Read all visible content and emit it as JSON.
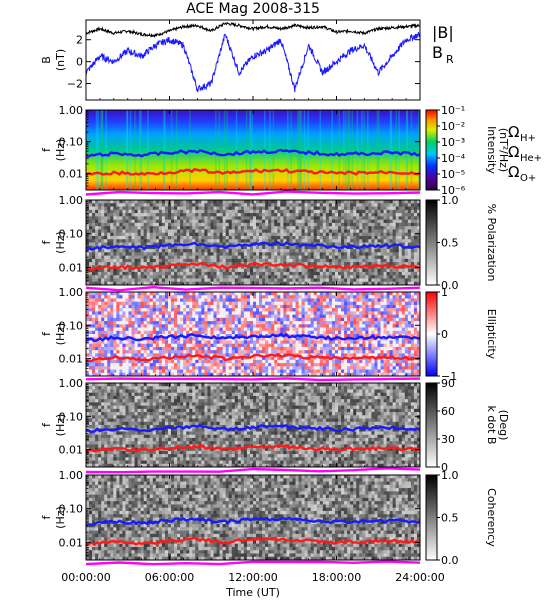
{
  "chart_data": {
    "title": "ACE Mag 2008-315",
    "xlabel": "Time (UT)",
    "x_ticks": [
      "00:00:00",
      "06:00:00",
      "12:00:00",
      "18:00:00",
      "24:00:00"
    ],
    "x_range_hours": [
      0,
      24
    ],
    "panels": [
      {
        "id": "B",
        "type": "line",
        "ylabel": "B",
        "yunit": "(nT)",
        "ylim": [
          -3.5,
          3.8
        ],
        "yticks": [
          {
            "v": 2,
            "label": "2"
          },
          {
            "v": 0,
            "label": "0"
          },
          {
            "v": -2,
            "label": "−2"
          }
        ],
        "legend": [
          {
            "name": "|B|",
            "sub": "",
            "color": "#000000"
          },
          {
            "name": "B",
            "sub": "R",
            "color": "#1a1aff"
          }
        ],
        "series": [
          {
            "name": "|B|",
            "color": "#000000",
            "x": [
              0,
              1,
              2,
              3,
              4,
              5,
              6,
              7,
              8,
              9,
              10,
              11,
              12,
              13,
              14,
              15,
              16,
              17,
              18,
              19,
              20,
              21,
              22,
              23,
              24
            ],
            "y": [
              2.6,
              3.0,
              2.6,
              2.8,
              2.5,
              2.4,
              2.8,
              3.2,
              3.3,
              2.8,
              3.5,
              3.3,
              3.0,
              3.2,
              3.0,
              3.3,
              3.1,
              3.2,
              2.7,
              2.8,
              2.6,
              3.0,
              3.1,
              3.2,
              3.3
            ]
          },
          {
            "name": "B_R",
            "color": "#1a1aff",
            "x": [
              0,
              1,
              2,
              3,
              4,
              5,
              6,
              7,
              8,
              9,
              10,
              11,
              12,
              13,
              14,
              15,
              16,
              17,
              18,
              19,
              20,
              21,
              22,
              23,
              24
            ],
            "y": [
              -1.0,
              0.5,
              0.0,
              1.0,
              0.5,
              1.5,
              2.0,
              1.5,
              -2.5,
              -2.0,
              2.5,
              -1.0,
              0.5,
              1.0,
              2.0,
              -2.5,
              1.5,
              -1.0,
              0.0,
              1.0,
              1.5,
              -1.0,
              0.5,
              2.0,
              2.5
            ]
          }
        ]
      },
      {
        "id": "intensity",
        "type": "heatmap",
        "ylabel": "f",
        "yunit": "(Hz)",
        "ylim": [
          0.003,
          1.0
        ],
        "yscale": "log",
        "yticks": [
          {
            "v": 1.0,
            "label": "1.00"
          },
          {
            "v": 0.1,
            "label": "0.10"
          },
          {
            "v": 0.01,
            "label": "0.01"
          }
        ],
        "colorbar": {
          "palette": "rainbow",
          "title": "Intensity",
          "subtitle": "(nT²/Hz)",
          "ticks": [
            "10⁻¹",
            "10⁻²",
            "10⁻³",
            "10⁻⁴",
            "10⁻⁵",
            "10⁻⁶"
          ]
        },
        "side_labels": [
          {
            "name": "Ω",
            "sub": "H+",
            "color": "#1a1aff"
          },
          {
            "name": "Ω",
            "sub": "He+",
            "color": "#ff1a1a"
          },
          {
            "name": "Ω",
            "sub": "O+",
            "color": "#ff00ff"
          }
        ]
      },
      {
        "id": "polarization",
        "type": "heatmap",
        "ylabel": "f",
        "yunit": "(Hz)",
        "ylim": [
          0.003,
          1.0
        ],
        "yscale": "log",
        "yticks": [
          {
            "v": 1.0,
            "label": "1.00"
          },
          {
            "v": 0.1,
            "label": "0.10"
          },
          {
            "v": 0.01,
            "label": "0.01"
          }
        ],
        "colorbar": {
          "palette": "gray",
          "title": "% Polarization",
          "subtitle": "",
          "ticks": [
            "1.0",
            "0.5",
            "0.0"
          ]
        }
      },
      {
        "id": "ellipticity",
        "type": "heatmap",
        "ylabel": "f",
        "yunit": "(Hz)",
        "ylim": [
          0.003,
          1.0
        ],
        "yscale": "log",
        "yticks": [
          {
            "v": 1.0,
            "label": "1.00"
          },
          {
            "v": 0.1,
            "label": "0.10"
          },
          {
            "v": 0.01,
            "label": "0.01"
          }
        ],
        "colorbar": {
          "palette": "bwr",
          "title": "Ellipticity",
          "subtitle": "",
          "ticks": [
            "1",
            "0",
            "−1"
          ]
        }
      },
      {
        "id": "kdotb",
        "type": "heatmap",
        "ylabel": "f",
        "yunit": "(Hz)",
        "ylim": [
          0.003,
          1.0
        ],
        "yscale": "log",
        "yticks": [
          {
            "v": 1.0,
            "label": "1.00"
          },
          {
            "v": 0.1,
            "label": "0.10"
          },
          {
            "v": 0.01,
            "label": "0.01"
          }
        ],
        "colorbar": {
          "palette": "gray",
          "title": "k dot B",
          "subtitle": "(Deg)",
          "ticks": [
            "90",
            "60",
            "30",
            "0"
          ]
        }
      },
      {
        "id": "coherency",
        "type": "heatmap",
        "ylabel": "f",
        "yunit": "(Hz)",
        "ylim": [
          0.003,
          1.0
        ],
        "yscale": "log",
        "yticks": [
          {
            "v": 1.0,
            "label": "1.00"
          },
          {
            "v": 0.1,
            "label": "0.10"
          },
          {
            "v": 0.01,
            "label": "0.01"
          }
        ],
        "colorbar": {
          "palette": "gray",
          "title": "Coherency",
          "subtitle": "",
          "ticks": [
            "1.0",
            "0.5",
            "0.0"
          ]
        }
      }
    ],
    "gyrofrequency_lines": [
      {
        "name": "Ω_H+",
        "color": "#1a1aff",
        "x": [
          0,
          2,
          4,
          6,
          8,
          10,
          12,
          14,
          16,
          18,
          20,
          22,
          24
        ],
        "y": [
          0.035,
          0.042,
          0.038,
          0.045,
          0.05,
          0.04,
          0.048,
          0.05,
          0.045,
          0.04,
          0.042,
          0.045,
          0.04
        ]
      },
      {
        "name": "Ω_He+",
        "color": "#ff1a1a",
        "x": [
          0,
          2,
          4,
          6,
          8,
          10,
          12,
          14,
          16,
          18,
          20,
          22,
          24
        ],
        "y": [
          0.009,
          0.0105,
          0.0095,
          0.011,
          0.0125,
          0.01,
          0.012,
          0.0125,
          0.011,
          0.01,
          0.0105,
          0.011,
          0.01
        ]
      },
      {
        "name": "Ω_O+",
        "color": "#ff00ff",
        "x": [
          0,
          24
        ],
        "y": [
          0.0023,
          0.0025
        ]
      }
    ]
  }
}
